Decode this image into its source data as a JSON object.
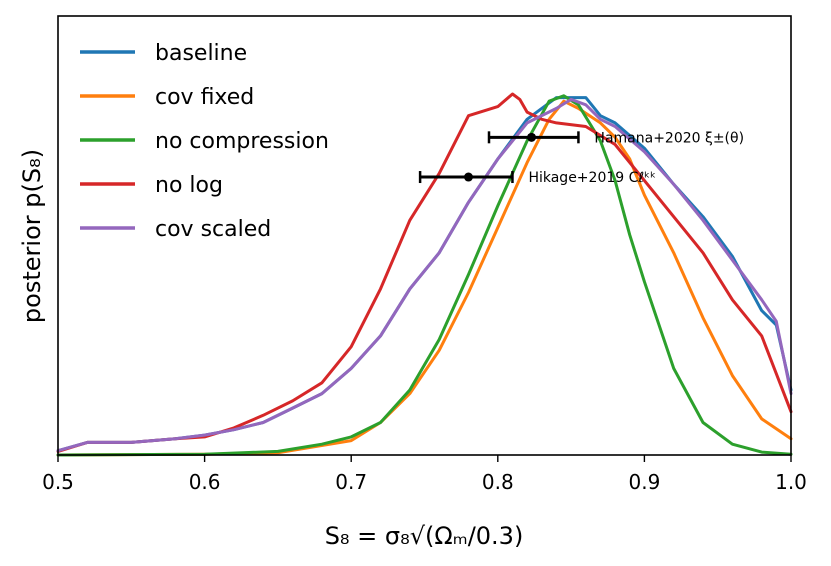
{
  "chart_data": {
    "type": "line",
    "title": "",
    "xlabel": "S₈ = σ₈√(Ωₘ/0.3)",
    "ylabel": "posterior p(S₈)",
    "xlim": [
      0.5,
      1.0
    ],
    "ylim": [
      0,
      1.0
    ],
    "x_ticks": [
      0.5,
      0.6,
      0.7,
      0.8,
      0.9,
      1.0
    ],
    "x_tick_labels": [
      "0.5",
      "0.6",
      "0.7",
      "0.8",
      "0.9",
      "1.0"
    ],
    "legend_position": "top-left",
    "series": [
      {
        "name": "baseline",
        "color": "#1f77b4",
        "points": [
          [
            0.5,
            0.012
          ],
          [
            0.52,
            0.035
          ],
          [
            0.55,
            0.035
          ],
          [
            0.58,
            0.045
          ],
          [
            0.6,
            0.055
          ],
          [
            0.62,
            0.07
          ],
          [
            0.64,
            0.09
          ],
          [
            0.66,
            0.13
          ],
          [
            0.68,
            0.17
          ],
          [
            0.7,
            0.24
          ],
          [
            0.72,
            0.33
          ],
          [
            0.74,
            0.46
          ],
          [
            0.76,
            0.56
          ],
          [
            0.78,
            0.7
          ],
          [
            0.8,
            0.82
          ],
          [
            0.82,
            0.93
          ],
          [
            0.84,
            0.99
          ],
          [
            0.855,
            0.99
          ],
          [
            0.86,
            0.99
          ],
          [
            0.87,
            0.94
          ],
          [
            0.88,
            0.92
          ],
          [
            0.9,
            0.85
          ],
          [
            0.92,
            0.75
          ],
          [
            0.94,
            0.66
          ],
          [
            0.96,
            0.55
          ],
          [
            0.98,
            0.4
          ],
          [
            0.99,
            0.36
          ],
          [
            1.0,
            0.18
          ]
        ]
      },
      {
        "name": "cov fixed",
        "color": "#ff7f0e",
        "points": [
          [
            0.5,
            0.0
          ],
          [
            0.6,
            0.002
          ],
          [
            0.65,
            0.006
          ],
          [
            0.7,
            0.04
          ],
          [
            0.72,
            0.09
          ],
          [
            0.74,
            0.17
          ],
          [
            0.76,
            0.29
          ],
          [
            0.78,
            0.45
          ],
          [
            0.8,
            0.63
          ],
          [
            0.82,
            0.81
          ],
          [
            0.835,
            0.93
          ],
          [
            0.845,
            0.98
          ],
          [
            0.855,
            0.96
          ],
          [
            0.87,
            0.92
          ],
          [
            0.88,
            0.88
          ],
          [
            0.89,
            0.82
          ],
          [
            0.9,
            0.72
          ],
          [
            0.92,
            0.56
          ],
          [
            0.94,
            0.38
          ],
          [
            0.96,
            0.22
          ],
          [
            0.98,
            0.1
          ],
          [
            1.0,
            0.045
          ]
        ]
      },
      {
        "name": "no compression",
        "color": "#2ca02c",
        "points": [
          [
            0.5,
            0.0
          ],
          [
            0.6,
            0.002
          ],
          [
            0.65,
            0.01
          ],
          [
            0.68,
            0.03
          ],
          [
            0.7,
            0.05
          ],
          [
            0.72,
            0.09
          ],
          [
            0.74,
            0.18
          ],
          [
            0.76,
            0.32
          ],
          [
            0.78,
            0.5
          ],
          [
            0.8,
            0.69
          ],
          [
            0.82,
            0.87
          ],
          [
            0.835,
            0.98
          ],
          [
            0.845,
            0.995
          ],
          [
            0.855,
            0.97
          ],
          [
            0.87,
            0.87
          ],
          [
            0.88,
            0.76
          ],
          [
            0.89,
            0.61
          ],
          [
            0.9,
            0.48
          ],
          [
            0.92,
            0.24
          ],
          [
            0.94,
            0.09
          ],
          [
            0.96,
            0.03
          ],
          [
            0.98,
            0.008
          ],
          [
            1.0,
            0.002
          ]
        ]
      },
      {
        "name": "no log",
        "color": "#d62728",
        "points": [
          [
            0.5,
            0.01
          ],
          [
            0.52,
            0.035
          ],
          [
            0.55,
            0.035
          ],
          [
            0.58,
            0.045
          ],
          [
            0.6,
            0.05
          ],
          [
            0.62,
            0.075
          ],
          [
            0.64,
            0.11
          ],
          [
            0.66,
            0.15
          ],
          [
            0.68,
            0.2
          ],
          [
            0.7,
            0.3
          ],
          [
            0.72,
            0.46
          ],
          [
            0.74,
            0.65
          ],
          [
            0.76,
            0.78
          ],
          [
            0.78,
            0.94
          ],
          [
            0.8,
            0.965
          ],
          [
            0.81,
            1.0
          ],
          [
            0.815,
            0.985
          ],
          [
            0.82,
            0.95
          ],
          [
            0.83,
            0.93
          ],
          [
            0.84,
            0.92
          ],
          [
            0.86,
            0.91
          ],
          [
            0.88,
            0.86
          ],
          [
            0.9,
            0.76
          ],
          [
            0.92,
            0.66
          ],
          [
            0.94,
            0.56
          ],
          [
            0.96,
            0.43
          ],
          [
            0.98,
            0.33
          ],
          [
            1.0,
            0.12
          ]
        ]
      },
      {
        "name": "cov scaled",
        "color": "#9467bd",
        "points": [
          [
            0.5,
            0.012
          ],
          [
            0.52,
            0.035
          ],
          [
            0.55,
            0.035
          ],
          [
            0.58,
            0.045
          ],
          [
            0.6,
            0.055
          ],
          [
            0.62,
            0.07
          ],
          [
            0.64,
            0.09
          ],
          [
            0.66,
            0.13
          ],
          [
            0.68,
            0.17
          ],
          [
            0.7,
            0.24
          ],
          [
            0.72,
            0.33
          ],
          [
            0.74,
            0.46
          ],
          [
            0.76,
            0.56
          ],
          [
            0.78,
            0.7
          ],
          [
            0.8,
            0.82
          ],
          [
            0.82,
            0.92
          ],
          [
            0.84,
            0.96
          ],
          [
            0.85,
            0.985
          ],
          [
            0.86,
            0.97
          ],
          [
            0.87,
            0.93
          ],
          [
            0.88,
            0.91
          ],
          [
            0.9,
            0.84
          ],
          [
            0.92,
            0.75
          ],
          [
            0.94,
            0.65
          ],
          [
            0.96,
            0.54
          ],
          [
            0.98,
            0.43
          ],
          [
            0.99,
            0.37
          ],
          [
            1.0,
            0.17
          ]
        ]
      }
    ],
    "annotations": [
      {
        "label": "Hamana+2020 ξ±(θ)",
        "center": 0.823,
        "low": 0.794,
        "high": 0.855,
        "level": 0.88
      },
      {
        "label": "Hikage+2019 Cℓᵏᵏ",
        "center": 0.78,
        "low": 0.747,
        "high": 0.81,
        "level": 0.77
      }
    ]
  }
}
